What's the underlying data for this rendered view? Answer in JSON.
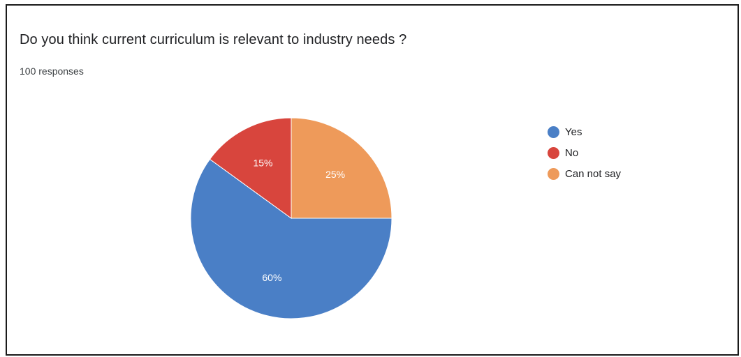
{
  "chart_data": {
    "type": "pie",
    "title": "Do you think current curriculum is relevant to industry needs ?",
    "subtitle": "100 responses",
    "categories": [
      "Yes",
      "No",
      "Can not say"
    ],
    "values": [
      60,
      15,
      25
    ],
    "labels": [
      "60%",
      "15%",
      "25%"
    ],
    "colors": [
      "#4A7FC6",
      "#D8453D",
      "#EE9A5A"
    ],
    "legend_position": "right"
  }
}
